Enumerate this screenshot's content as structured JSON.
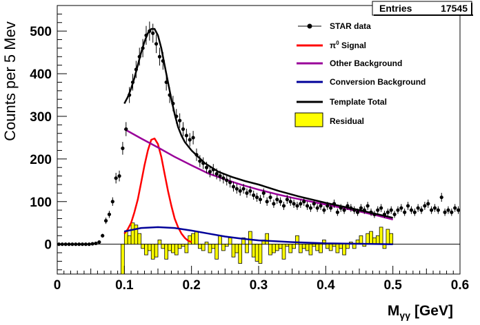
{
  "chart_data": {
    "type": "line",
    "title": "",
    "stats_box": {
      "label": "Entries",
      "value": "17545"
    },
    "xlabel_main": "M",
    "xlabel_sub": "γγ",
    "xlabel_unit": "[GeV]",
    "ylabel": "Counts per 5 Mev",
    "xlim": [
      0,
      0.6
    ],
    "ylim": [
      -70,
      560
    ],
    "xticks": [
      0,
      0.1,
      0.2,
      0.3,
      0.4,
      0.5,
      0.6
    ],
    "xtick_labels": [
      "0",
      "0.1",
      "0.2",
      "0.3",
      "0.4",
      "0.5",
      "0.6"
    ],
    "yticks": [
      0,
      100,
      200,
      300,
      400,
      500
    ],
    "ytick_labels": [
      "0",
      "100",
      "200",
      "300",
      "400",
      "500"
    ],
    "legend": {
      "placement": "top-right",
      "entries": [
        {
          "label": "STAR data",
          "style": "marker",
          "color": "#000000"
        },
        {
          "label_pre": "π",
          "label_sup": "0",
          "label_post": " Signal",
          "style": "line",
          "color": "#ff0000"
        },
        {
          "label": "Other Background",
          "style": "line",
          "color": "#990099"
        },
        {
          "label": "Conversion Background",
          "style": "line",
          "color": "#000099"
        },
        {
          "label": "Template Total",
          "style": "line",
          "color": "#000000"
        },
        {
          "label": "Residual",
          "style": "fill",
          "color": "#ffff00"
        }
      ]
    },
    "series": [
      {
        "name": "STAR data",
        "kind": "points",
        "color": "#000000",
        "x": [
          0.0025,
          0.0075,
          0.0125,
          0.0175,
          0.0225,
          0.0275,
          0.0325,
          0.0375,
          0.0425,
          0.0475,
          0.0525,
          0.0575,
          0.0625,
          0.0675,
          0.0725,
          0.0775,
          0.0825,
          0.0875,
          0.0925,
          0.0975,
          0.1025,
          0.1075,
          0.1125,
          0.1175,
          0.1225,
          0.1275,
          0.1325,
          0.1375,
          0.1425,
          0.1475,
          0.1525,
          0.1575,
          0.1625,
          0.1675,
          0.1725,
          0.1775,
          0.1825,
          0.1875,
          0.1925,
          0.1975,
          0.2025,
          0.2075,
          0.2125,
          0.2175,
          0.2225,
          0.2275,
          0.2325,
          0.2375,
          0.2425,
          0.2475,
          0.2525,
          0.2575,
          0.2625,
          0.2675,
          0.2725,
          0.2775,
          0.2825,
          0.2875,
          0.2925,
          0.2975,
          0.3025,
          0.3075,
          0.3125,
          0.3175,
          0.3225,
          0.3275,
          0.3325,
          0.3375,
          0.3425,
          0.3475,
          0.3525,
          0.3575,
          0.3625,
          0.3675,
          0.3725,
          0.3775,
          0.3825,
          0.3875,
          0.3925,
          0.3975,
          0.4025,
          0.4075,
          0.4125,
          0.4175,
          0.4225,
          0.4275,
          0.4325,
          0.4375,
          0.4425,
          0.4475,
          0.4525,
          0.4575,
          0.4625,
          0.4675,
          0.4725,
          0.4775,
          0.4825,
          0.4875,
          0.4925,
          0.4975,
          0.5025,
          0.5075,
          0.5125,
          0.5175,
          0.5225,
          0.5275,
          0.5325,
          0.5375,
          0.5425,
          0.5475,
          0.5525,
          0.5575,
          0.5625,
          0.5675,
          0.5725,
          0.5775,
          0.5825,
          0.5875,
          0.5925,
          0.5975
        ],
        "y": [
          0,
          0,
          0,
          0,
          0,
          0,
          0,
          0,
          0,
          0,
          1,
          2,
          5,
          20,
          55,
          70,
          100,
          155,
          160,
          225,
          270,
          350,
          380,
          410,
          440,
          460,
          490,
          500,
          495,
          470,
          440,
          430,
          380,
          350,
          330,
          300,
          290,
          270,
          255,
          245,
          250,
          210,
          195,
          190,
          180,
          170,
          175,
          165,
          160,
          155,
          150,
          145,
          135,
          130,
          125,
          130,
          120,
          125,
          115,
          110,
          105,
          120,
          100,
          110,
          95,
          105,
          100,
          90,
          105,
          100,
          95,
          90,
          95,
          100,
          90,
          85,
          95,
          85,
          90,
          80,
          90,
          85,
          95,
          75,
          85,
          80,
          90,
          85,
          80,
          75,
          85,
          80,
          90,
          75,
          70,
          80,
          85,
          70,
          75,
          80,
          70,
          80,
          85,
          75,
          90,
          80,
          75,
          85,
          80,
          90,
          95,
          80,
          85,
          80,
          110,
          75,
          80,
          75,
          85,
          80
        ]
      },
      {
        "name": "π0 Signal",
        "kind": "line",
        "color": "#ff0000",
        "x": [
          0.1,
          0.105,
          0.11,
          0.115,
          0.12,
          0.125,
          0.13,
          0.135,
          0.14,
          0.145,
          0.15,
          0.155,
          0.16,
          0.165,
          0.17,
          0.175,
          0.18,
          0.185,
          0.19,
          0.195,
          0.2
        ],
        "y": [
          25,
          35,
          50,
          75,
          105,
          145,
          185,
          220,
          245,
          248,
          235,
          205,
          165,
          125,
          90,
          60,
          40,
          25,
          15,
          8,
          5
        ]
      },
      {
        "name": "Other Background",
        "kind": "line",
        "color": "#990099",
        "x": [
          0.1,
          0.125,
          0.15,
          0.175,
          0.2,
          0.225,
          0.25,
          0.275,
          0.3,
          0.325,
          0.35,
          0.375,
          0.4,
          0.425,
          0.45,
          0.475,
          0.5
        ],
        "y": [
          270,
          248,
          227,
          205,
          185,
          166,
          152,
          139,
          128,
          118,
          109,
          101,
          93,
          85,
          77,
          68,
          58
        ]
      },
      {
        "name": "Conversion Background",
        "kind": "line",
        "color": "#000099",
        "x": [
          0.1,
          0.125,
          0.15,
          0.175,
          0.2,
          0.225,
          0.25,
          0.275,
          0.3,
          0.35,
          0.4,
          0.45,
          0.5
        ],
        "y": [
          30,
          38,
          40,
          38,
          32,
          25,
          18,
          13,
          9,
          5,
          2,
          1,
          0
        ]
      },
      {
        "name": "Template Total",
        "kind": "line",
        "color": "#000000",
        "x": [
          0.1,
          0.105,
          0.11,
          0.115,
          0.12,
          0.125,
          0.13,
          0.135,
          0.14,
          0.145,
          0.15,
          0.155,
          0.16,
          0.165,
          0.17,
          0.175,
          0.18,
          0.185,
          0.19,
          0.2,
          0.21,
          0.22,
          0.24,
          0.26,
          0.28,
          0.3,
          0.33,
          0.36,
          0.4,
          0.45,
          0.5
        ],
        "y": [
          330,
          345,
          365,
          390,
          420,
          450,
          475,
          495,
          505,
          505,
          490,
          460,
          420,
          380,
          340,
          305,
          275,
          255,
          240,
          220,
          205,
          190,
          170,
          158,
          148,
          140,
          125,
          112,
          97,
          80,
          62
        ]
      },
      {
        "name": "Residual",
        "kind": "fill",
        "color": "#ffff00",
        "x": [
          0.0975,
          0.1025,
          0.1075,
          0.1125,
          0.1175,
          0.1225,
          0.1275,
          0.1325,
          0.1375,
          0.1425,
          0.1475,
          0.1525,
          0.1575,
          0.1625,
          0.1675,
          0.1725,
          0.1775,
          0.1825,
          0.1875,
          0.1925,
          0.1975,
          0.2025,
          0.2075,
          0.2125,
          0.2175,
          0.2225,
          0.2275,
          0.2325,
          0.2375,
          0.2425,
          0.2475,
          0.2525,
          0.2575,
          0.2625,
          0.2675,
          0.2725,
          0.2775,
          0.2825,
          0.2875,
          0.2925,
          0.2975,
          0.3025,
          0.3075,
          0.3125,
          0.3175,
          0.3225,
          0.3275,
          0.3325,
          0.3375,
          0.3425,
          0.3475,
          0.3525,
          0.3575,
          0.3625,
          0.3675,
          0.3725,
          0.3775,
          0.3825,
          0.3875,
          0.3925,
          0.3975,
          0.4025,
          0.4075,
          0.4125,
          0.4175,
          0.4225,
          0.4275,
          0.4325,
          0.4375,
          0.4425,
          0.4475,
          0.4525,
          0.4575,
          0.4625,
          0.4675,
          0.4725,
          0.4775,
          0.4825,
          0.4875,
          0.4925,
          0.4975
        ],
        "y": [
          -70,
          30,
          20,
          50,
          45,
          25,
          -10,
          -25,
          -15,
          -35,
          -30,
          10,
          -10,
          -35,
          -15,
          -20,
          -25,
          -10,
          -5,
          -20,
          20,
          25,
          30,
          -10,
          -15,
          5,
          -20,
          -10,
          -35,
          20,
          -15,
          -5,
          15,
          -30,
          -20,
          -45,
          15,
          -20,
          30,
          -30,
          -40,
          -45,
          10,
          25,
          -25,
          -20,
          -15,
          -10,
          -35,
          -5,
          -20,
          -10,
          20,
          -20,
          -10,
          -15,
          -25,
          -5,
          -15,
          -20,
          10,
          -10,
          -15,
          -5,
          -20,
          -10,
          -25,
          -10,
          5,
          -10,
          10,
          20,
          -5,
          25,
          30,
          15,
          20,
          40,
          -10,
          35,
          25
        ]
      }
    ]
  }
}
